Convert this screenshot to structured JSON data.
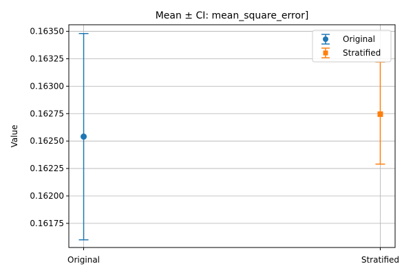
{
  "chart_data": {
    "type": "errorbar",
    "title": "Mean ± CI: mean_square_error]",
    "xlabel": "",
    "ylabel": "Value",
    "categories": [
      "Original",
      "Stratified"
    ],
    "ylim": [
      0.16153,
      0.16356
    ],
    "yticks": [
      0.16175,
      0.162,
      0.16225,
      0.1625,
      0.16275,
      0.163,
      0.16325,
      0.1635
    ],
    "ytick_labels": [
      "0.16175",
      "0.16200",
      "0.16225",
      "0.16250",
      "0.16275",
      "0.16300",
      "0.16325",
      "0.16350"
    ],
    "grid": true,
    "legend_position": "top-right",
    "series": [
      {
        "name": "Original",
        "x": "Original",
        "mean": 0.162541,
        "ci_low": 0.1616,
        "ci_high": 0.16348,
        "color": "#1f77b4",
        "marker": "circle"
      },
      {
        "name": "Stratified",
        "x": "Stratified",
        "mean": 0.162745,
        "ci_low": 0.16229,
        "ci_high": 0.16322,
        "color": "#ff7f0e",
        "marker": "square"
      }
    ]
  }
}
